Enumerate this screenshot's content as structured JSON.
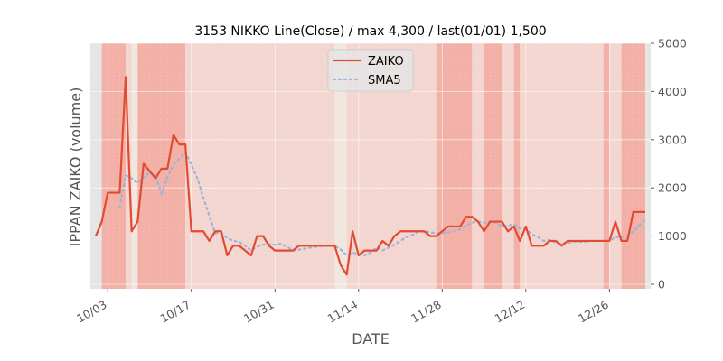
{
  "chart_data": {
    "type": "line",
    "title": "3153 NIKKO Line(Close) / max 4,300 / last(01/01) 1,500",
    "xlabel": "DATE",
    "ylabel": "IPPAN ZAIKO (volume)",
    "ylim": [
      0,
      5000
    ],
    "yticks": [
      0,
      1000,
      2000,
      3000,
      4000,
      5000
    ],
    "y_tick_labels": [
      "0",
      "1000",
      "2000",
      "3000",
      "4000",
      "5000"
    ],
    "x_start": "2023-10-01",
    "x_end": "2024-01-01",
    "x_tick_labels": [
      {
        "date": "2023-10-03",
        "label": "10/03"
      },
      {
        "date": "2023-10-17",
        "label": "10/17"
      },
      {
        "date": "2023-10-31",
        "label": "10/31"
      },
      {
        "date": "2023-11-14",
        "label": "11/14"
      },
      {
        "date": "2023-11-28",
        "label": "11/28"
      },
      {
        "date": "2023-12-12",
        "label": "12/12"
      },
      {
        "date": "2023-12-26",
        "label": "12/26"
      }
    ],
    "legend": {
      "position": "top-center",
      "entries": [
        "ZAIKO",
        "SMA5"
      ]
    },
    "colors": {
      "zaiko": "#e24a33",
      "sma5": "#9cb4d8",
      "axes_bg": "#e5e5e5",
      "band_dark": "#f4a79c",
      "band_light": "#f6d4cc",
      "band_pale": "#f3e7dd"
    },
    "bands": [
      {
        "from": "2023-10-02",
        "to": "2023-10-06",
        "shade": "dark"
      },
      {
        "from": "2023-10-06",
        "to": "2023-10-07",
        "shade": "light"
      },
      {
        "from": "2023-10-07",
        "to": "2023-10-08",
        "shade": "pale"
      },
      {
        "from": "2023-10-08",
        "to": "2023-10-16",
        "shade": "dark"
      },
      {
        "from": "2023-10-16",
        "to": "2023-11-10",
        "shade": "light"
      },
      {
        "from": "2023-11-10",
        "to": "2023-11-12",
        "shade": "pale"
      },
      {
        "from": "2023-11-12",
        "to": "2023-11-27",
        "shade": "light"
      },
      {
        "from": "2023-11-27",
        "to": "2023-12-03",
        "shade": "dark"
      },
      {
        "from": "2023-12-03",
        "to": "2023-12-05",
        "shade": "light"
      },
      {
        "from": "2023-12-05",
        "to": "2023-12-08",
        "shade": "dark"
      },
      {
        "from": "2023-12-08",
        "to": "2023-12-10",
        "shade": "light"
      },
      {
        "from": "2023-12-10",
        "to": "2023-12-11",
        "shade": "dark"
      },
      {
        "from": "2023-12-11",
        "to": "2023-12-25",
        "shade": "light"
      },
      {
        "from": "2023-12-25",
        "to": "2023-12-26",
        "shade": "dark"
      },
      {
        "from": "2023-12-26",
        "to": "2023-12-28",
        "shade": "light"
      },
      {
        "from": "2023-12-28",
        "to": "2024-01-01",
        "shade": "dark"
      }
    ],
    "series": [
      {
        "name": "ZAIKO",
        "style": "solid",
        "points": [
          [
            "2023-10-01",
            1000
          ],
          [
            "2023-10-02",
            1300
          ],
          [
            "2023-10-03",
            1900
          ],
          [
            "2023-10-04",
            1900
          ],
          [
            "2023-10-05",
            1900
          ],
          [
            "2023-10-06",
            4300
          ],
          [
            "2023-10-07",
            1100
          ],
          [
            "2023-10-08",
            1300
          ],
          [
            "2023-10-09",
            2500
          ],
          [
            "2023-10-10",
            2350
          ],
          [
            "2023-10-11",
            2200
          ],
          [
            "2023-10-12",
            2400
          ],
          [
            "2023-10-13",
            2400
          ],
          [
            "2023-10-14",
            3100
          ],
          [
            "2023-10-15",
            2900
          ],
          [
            "2023-10-16",
            2900
          ],
          [
            "2023-10-17",
            1100
          ],
          [
            "2023-10-18",
            1100
          ],
          [
            "2023-10-19",
            1100
          ],
          [
            "2023-10-20",
            900
          ],
          [
            "2023-10-21",
            1100
          ],
          [
            "2023-10-22",
            1100
          ],
          [
            "2023-10-23",
            600
          ],
          [
            "2023-10-24",
            800
          ],
          [
            "2023-10-25",
            800
          ],
          [
            "2023-10-26",
            700
          ],
          [
            "2023-10-27",
            600
          ],
          [
            "2023-10-28",
            1000
          ],
          [
            "2023-10-29",
            1000
          ],
          [
            "2023-10-30",
            800
          ],
          [
            "2023-10-31",
            700
          ],
          [
            "2023-11-01",
            700
          ],
          [
            "2023-11-02",
            700
          ],
          [
            "2023-11-03",
            700
          ],
          [
            "2023-11-04",
            800
          ],
          [
            "2023-11-05",
            800
          ],
          [
            "2023-11-06",
            800
          ],
          [
            "2023-11-07",
            800
          ],
          [
            "2023-11-08",
            800
          ],
          [
            "2023-11-09",
            800
          ],
          [
            "2023-11-10",
            800
          ],
          [
            "2023-11-11",
            400
          ],
          [
            "2023-11-12",
            200
          ],
          [
            "2023-11-13",
            1100
          ],
          [
            "2023-11-14",
            600
          ],
          [
            "2023-11-15",
            700
          ],
          [
            "2023-11-16",
            700
          ],
          [
            "2023-11-17",
            700
          ],
          [
            "2023-11-18",
            900
          ],
          [
            "2023-11-19",
            800
          ],
          [
            "2023-11-20",
            1000
          ],
          [
            "2023-11-21",
            1100
          ],
          [
            "2023-11-22",
            1100
          ],
          [
            "2023-11-23",
            1100
          ],
          [
            "2023-11-24",
            1100
          ],
          [
            "2023-11-25",
            1100
          ],
          [
            "2023-11-26",
            1000
          ],
          [
            "2023-11-27",
            1000
          ],
          [
            "2023-11-28",
            1100
          ],
          [
            "2023-11-29",
            1200
          ],
          [
            "2023-11-30",
            1200
          ],
          [
            "2023-12-01",
            1200
          ],
          [
            "2023-12-02",
            1400
          ],
          [
            "2023-12-03",
            1400
          ],
          [
            "2023-12-04",
            1300
          ],
          [
            "2023-12-05",
            1100
          ],
          [
            "2023-12-06",
            1300
          ],
          [
            "2023-12-07",
            1300
          ],
          [
            "2023-12-08",
            1300
          ],
          [
            "2023-12-09",
            1100
          ],
          [
            "2023-12-10",
            1200
          ],
          [
            "2023-12-11",
            900
          ],
          [
            "2023-12-12",
            1200
          ],
          [
            "2023-12-13",
            800
          ],
          [
            "2023-12-14",
            800
          ],
          [
            "2023-12-15",
            800
          ],
          [
            "2023-12-16",
            900
          ],
          [
            "2023-12-17",
            900
          ],
          [
            "2023-12-18",
            800
          ],
          [
            "2023-12-19",
            900
          ],
          [
            "2023-12-20",
            900
          ],
          [
            "2023-12-21",
            900
          ],
          [
            "2023-12-22",
            900
          ],
          [
            "2023-12-23",
            900
          ],
          [
            "2023-12-24",
            900
          ],
          [
            "2023-12-25",
            900
          ],
          [
            "2023-12-26",
            900
          ],
          [
            "2023-12-27",
            1300
          ],
          [
            "2023-12-28",
            900
          ],
          [
            "2023-12-29",
            900
          ],
          [
            "2023-12-30",
            1500
          ],
          [
            "2023-12-31",
            1500
          ],
          [
            "2024-01-01",
            1500
          ]
        ]
      },
      {
        "name": "SMA5",
        "style": "dotted",
        "points": [
          [
            "2023-10-05",
            1600
          ],
          [
            "2023-10-06",
            2260
          ],
          [
            "2023-10-07",
            2200
          ],
          [
            "2023-10-08",
            2100
          ],
          [
            "2023-10-09",
            2220
          ],
          [
            "2023-10-10",
            2310
          ],
          [
            "2023-10-11",
            2250
          ],
          [
            "2023-10-12",
            1890
          ],
          [
            "2023-10-13",
            2220
          ],
          [
            "2023-10-14",
            2490
          ],
          [
            "2023-10-15",
            2600
          ],
          [
            "2023-10-16",
            2740
          ],
          [
            "2023-10-17",
            2480
          ],
          [
            "2023-10-18",
            2200
          ],
          [
            "2023-10-19",
            1800
          ],
          [
            "2023-10-20",
            1420
          ],
          [
            "2023-10-21",
            1060
          ],
          [
            "2023-10-22",
            1060
          ],
          [
            "2023-10-23",
            960
          ],
          [
            "2023-10-24",
            900
          ],
          [
            "2023-10-25",
            880
          ],
          [
            "2023-10-26",
            800
          ],
          [
            "2023-10-27",
            700
          ],
          [
            "2023-10-28",
            780
          ],
          [
            "2023-10-29",
            820
          ],
          [
            "2023-10-30",
            840
          ],
          [
            "2023-10-31",
            820
          ],
          [
            "2023-11-01",
            840
          ],
          [
            "2023-11-02",
            780
          ],
          [
            "2023-11-03",
            700
          ],
          [
            "2023-11-04",
            720
          ],
          [
            "2023-11-05",
            740
          ],
          [
            "2023-11-06",
            760
          ],
          [
            "2023-11-07",
            780
          ],
          [
            "2023-11-08",
            800
          ],
          [
            "2023-11-09",
            800
          ],
          [
            "2023-11-10",
            800
          ],
          [
            "2023-11-11",
            720
          ],
          [
            "2023-11-12",
            600
          ],
          [
            "2023-11-13",
            660
          ],
          [
            "2023-11-14",
            620
          ],
          [
            "2023-11-15",
            600
          ],
          [
            "2023-11-16",
            660
          ],
          [
            "2023-11-17",
            760
          ],
          [
            "2023-11-18",
            700
          ],
          [
            "2023-11-19",
            760
          ],
          [
            "2023-11-20",
            820
          ],
          [
            "2023-11-21",
            900
          ],
          [
            "2023-11-22",
            980
          ],
          [
            "2023-11-23",
            1020
          ],
          [
            "2023-11-24",
            1100
          ],
          [
            "2023-11-25",
            1100
          ],
          [
            "2023-11-26",
            1080
          ],
          [
            "2023-11-27",
            1060
          ],
          [
            "2023-11-28",
            1060
          ],
          [
            "2023-11-29",
            1080
          ],
          [
            "2023-11-30",
            1100
          ],
          [
            "2023-12-01",
            1140
          ],
          [
            "2023-12-02",
            1220
          ],
          [
            "2023-12-03",
            1280
          ],
          [
            "2023-12-04",
            1300
          ],
          [
            "2023-12-05",
            1280
          ],
          [
            "2023-12-06",
            1300
          ],
          [
            "2023-12-07",
            1280
          ],
          [
            "2023-12-08",
            1200
          ],
          [
            "2023-12-09",
            1220
          ],
          [
            "2023-12-10",
            1240
          ],
          [
            "2023-12-11",
            1160
          ],
          [
            "2023-12-12",
            1140
          ],
          [
            "2023-12-13",
            1040
          ],
          [
            "2023-12-14",
            980
          ],
          [
            "2023-12-15",
            900
          ],
          [
            "2023-12-16",
            920
          ],
          [
            "2023-12-17",
            860
          ],
          [
            "2023-12-18",
            840
          ],
          [
            "2023-12-19",
            860
          ],
          [
            "2023-12-20",
            880
          ],
          [
            "2023-12-21",
            880
          ],
          [
            "2023-12-22",
            880
          ],
          [
            "2023-12-23",
            900
          ],
          [
            "2023-12-24",
            900
          ],
          [
            "2023-12-25",
            900
          ],
          [
            "2023-12-26",
            900
          ],
          [
            "2023-12-27",
            980
          ],
          [
            "2023-12-28",
            980
          ],
          [
            "2023-12-29",
            1000
          ],
          [
            "2023-12-30",
            1100
          ],
          [
            "2023-12-31",
            1220
          ],
          [
            "2024-01-01",
            1340
          ]
        ]
      }
    ]
  }
}
